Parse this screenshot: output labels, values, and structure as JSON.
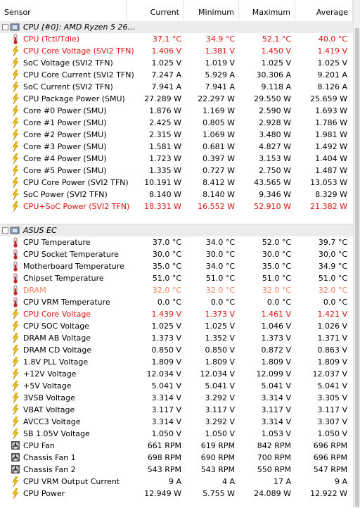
{
  "header": [
    "Sensor",
    "Current",
    "Minimum",
    "Maximum",
    "Average"
  ],
  "groups": [
    {
      "title": "CPU [#0]: AMD Ryzen 5 26...",
      "rows": [
        {
          "icon": "temp",
          "color": "#e01010",
          "cells": [
            "CPU (Tctl/Tdie)",
            "37.1 °C",
            "34.9 °C",
            "52.1 °C",
            "40.0 °C"
          ]
        },
        {
          "icon": "power",
          "color": "#e01010",
          "cells": [
            "CPU Core Voltage (SVI2 TFN)",
            "1.406 V",
            "1.381 V",
            "1.450 V",
            "1.419 V"
          ]
        },
        {
          "icon": "power",
          "cells": [
            "SoC Voltage (SVI2 TFN)",
            "1.025 V",
            "1.019 V",
            "1.025 V",
            "1.025 V"
          ]
        },
        {
          "icon": "power",
          "cells": [
            "CPU Core Current (SVI2 TFN)",
            "7.247 A",
            "5.929 A",
            "30.306 A",
            "9.201 A"
          ]
        },
        {
          "icon": "power",
          "cells": [
            "SoC Current (SVI2 TFN)",
            "7.941 A",
            "7.941 A",
            "9.118 A",
            "8.126 A"
          ]
        },
        {
          "icon": "power",
          "cells": [
            "CPU Package Power (SMU)",
            "27.289 W",
            "22.297 W",
            "29.550 W",
            "25.659 W"
          ]
        },
        {
          "icon": "power",
          "cells": [
            "Core #0 Power (SMU)",
            "1.876 W",
            "1.169 W",
            "2.590 W",
            "1.693 W"
          ]
        },
        {
          "icon": "power",
          "cells": [
            "Core #1 Power (SMU)",
            "2.425 W",
            "0.805 W",
            "2.928 W",
            "1.786 W"
          ]
        },
        {
          "icon": "power",
          "cells": [
            "Core #2 Power (SMU)",
            "2.315 W",
            "1.069 W",
            "3.480 W",
            "1.981 W"
          ]
        },
        {
          "icon": "power",
          "cells": [
            "Core #3 Power (SMU)",
            "1.581 W",
            "0.681 W",
            "4.827 W",
            "1.492 W"
          ]
        },
        {
          "icon": "power",
          "cells": [
            "Core #4 Power (SMU)",
            "1.723 W",
            "0.397 W",
            "3.153 W",
            "1.404 W"
          ]
        },
        {
          "icon": "power",
          "cells": [
            "Core #5 Power (SMU)",
            "1.335 W",
            "0.727 W",
            "2.750 W",
            "1.487 W"
          ]
        },
        {
          "icon": "power",
          "cells": [
            "CPU Core Power (SVI2 TFN)",
            "10.191 W",
            "8.412 W",
            "43.565 W",
            "13.053 W"
          ]
        },
        {
          "icon": "power",
          "cells": [
            "SoC Power (SVI2 TFN)",
            "8.140 W",
            "8.140 W",
            "9.346 W",
            "8.329 W"
          ]
        },
        {
          "icon": "power",
          "color": "#e01010",
          "cells": [
            "CPU+SoC Power (SVI2 TFN)",
            "18.331 W",
            "16.552 W",
            "52.910 W",
            "21.382 W"
          ]
        }
      ]
    },
    {
      "title": "ASUS EC",
      "rows": [
        {
          "icon": "temp",
          "cells": [
            "CPU Temperature",
            "37.0 °C",
            "34.0 °C",
            "52.0 °C",
            "39.7 °C"
          ]
        },
        {
          "icon": "temp",
          "cells": [
            "CPU Socket Temperature",
            "30.0 °C",
            "30.0 °C",
            "30.0 °C",
            "30.0 °C"
          ]
        },
        {
          "icon": "temp",
          "cells": [
            "Motherboard Temperature",
            "35.0 °C",
            "34.0 °C",
            "35.0 °C",
            "34.9 °C"
          ]
        },
        {
          "icon": "temp",
          "cells": [
            "Chipset Temperature",
            "51.0 °C",
            "51.0 °C",
            "51.0 °C",
            "51.0 °C"
          ]
        },
        {
          "icon": "temp",
          "color": "#f08060",
          "cells": [
            "DRAM",
            "32.0 °C",
            "32.0 °C",
            "32.0 °C",
            "32.0 °C"
          ]
        },
        {
          "icon": "temp",
          "cells": [
            "CPU VRM Temperature",
            "0.0 °C",
            "0.0 °C",
            "0.0 °C",
            "0.0 °C"
          ]
        },
        {
          "icon": "power",
          "color": "#e01010",
          "cells": [
            "CPU Core Voltage",
            "1.439 V",
            "1.373 V",
            "1.461 V",
            "1.421 V"
          ]
        },
        {
          "icon": "power",
          "cells": [
            "CPU SOC Voltage",
            "1.025 V",
            "1.025 V",
            "1.046 V",
            "1.026 V"
          ]
        },
        {
          "icon": "power",
          "cells": [
            "DRAM AB Voltage",
            "1.373 V",
            "1.352 V",
            "1.373 V",
            "1.371 V"
          ]
        },
        {
          "icon": "power",
          "cells": [
            "DRAM CD Voltage",
            "0.850 V",
            "0.850 V",
            "0.872 V",
            "0.863 V"
          ]
        },
        {
          "icon": "power",
          "cells": [
            "1.8V PLL Voltage",
            "1.809 V",
            "1.809 V",
            "1.809 V",
            "1.809 V"
          ]
        },
        {
          "icon": "power",
          "cells": [
            "+12V Voltage",
            "12.034 V",
            "12.034 V",
            "12.099 V",
            "12.037 V"
          ]
        },
        {
          "icon": "power",
          "cells": [
            "+5V Voltage",
            "5.041 V",
            "5.041 V",
            "5.041 V",
            "5.041 V"
          ]
        },
        {
          "icon": "power",
          "cells": [
            "3VSB Voltage",
            "3.314 V",
            "3.292 V",
            "3.314 V",
            "3.305 V"
          ]
        },
        {
          "icon": "power",
          "cells": [
            "VBAT Voltage",
            "3.117 V",
            "3.117 V",
            "3.117 V",
            "3.117 V"
          ]
        },
        {
          "icon": "power",
          "cells": [
            "AVCC3 Voltage",
            "3.314 V",
            "3.292 V",
            "3.314 V",
            "3.307 V"
          ]
        },
        {
          "icon": "power",
          "cells": [
            "SB 1.05V Voltage",
            "1.050 V",
            "1.050 V",
            "1.053 V",
            "1.050 V"
          ]
        },
        {
          "icon": "fan",
          "cells": [
            "CPU Fan",
            "661 RPM",
            "619 RPM",
            "842 RPM",
            "696 RPM"
          ]
        },
        {
          "icon": "fan",
          "cells": [
            "Chassis Fan 1",
            "698 RPM",
            "690 RPM",
            "700 RPM",
            "696 RPM"
          ]
        },
        {
          "icon": "fan",
          "cells": [
            "Chassis Fan 2",
            "543 RPM",
            "543 RPM",
            "550 RPM",
            "547 RPM"
          ]
        },
        {
          "icon": "power",
          "cells": [
            "CPU VRM Output Current",
            "9 A",
            "4 A",
            "17 A",
            "9 A"
          ]
        },
        {
          "icon": "power",
          "cells": [
            "CPU Power",
            "12.949 W",
            "5.755 W",
            "24.089 W",
            "12.922 W"
          ]
        }
      ]
    }
  ]
}
